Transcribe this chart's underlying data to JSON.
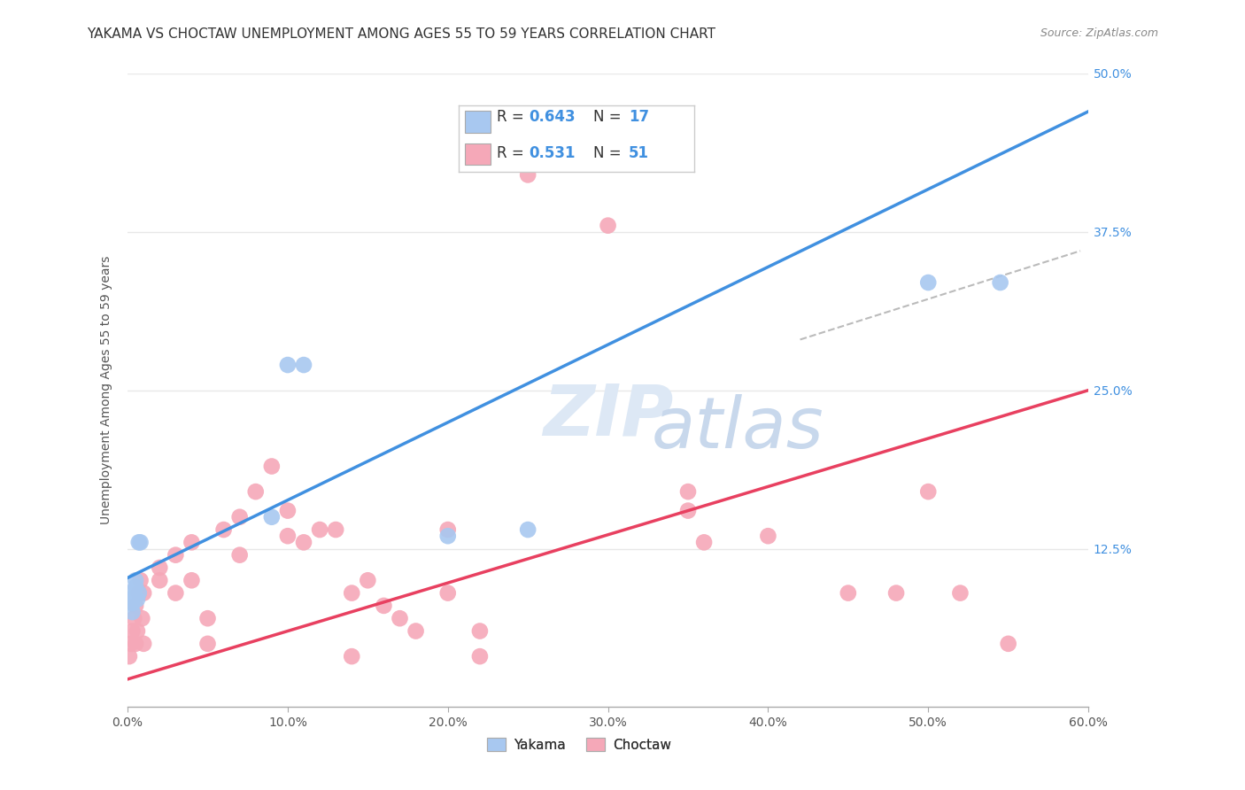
{
  "title": "YAKAMA VS CHOCTAW UNEMPLOYMENT AMONG AGES 55 TO 59 YEARS CORRELATION CHART",
  "source": "Source: ZipAtlas.com",
  "ylabel": "Unemployment Among Ages 55 to 59 years",
  "xlim": [
    0.0,
    0.6
  ],
  "ylim": [
    0.0,
    0.5
  ],
  "xticks": [
    0.0,
    0.1,
    0.2,
    0.3,
    0.4,
    0.5,
    0.6
  ],
  "yticks": [
    0.0,
    0.125,
    0.25,
    0.375,
    0.5
  ],
  "xtick_labels": [
    "0.0%",
    "10.0%",
    "20.0%",
    "30.0%",
    "40.0%",
    "50.0%",
    "60.0%"
  ],
  "ytick_labels": [
    "",
    "12.5%",
    "25.0%",
    "37.5%",
    "50.0%"
  ],
  "yakama_color": "#A8C8F0",
  "choctaw_color": "#F5A8B8",
  "yakama_line_color": "#4090E0",
  "choctaw_line_color": "#E84060",
  "dashed_line_color": "#BBBBBB",
  "watermark_color": "#DDE8F5",
  "yakama_points": [
    [
      0.001,
      0.085
    ],
    [
      0.002,
      0.09
    ],
    [
      0.003,
      0.075
    ],
    [
      0.003,
      0.082
    ],
    [
      0.005,
      0.095
    ],
    [
      0.005,
      0.1
    ],
    [
      0.006,
      0.085
    ],
    [
      0.007,
      0.09
    ],
    [
      0.007,
      0.13
    ],
    [
      0.008,
      0.13
    ],
    [
      0.09,
      0.15
    ],
    [
      0.1,
      0.27
    ],
    [
      0.11,
      0.27
    ],
    [
      0.2,
      0.135
    ],
    [
      0.25,
      0.14
    ],
    [
      0.5,
      0.335
    ],
    [
      0.545,
      0.335
    ]
  ],
  "choctaw_points": [
    [
      0.001,
      0.04
    ],
    [
      0.002,
      0.05
    ],
    [
      0.003,
      0.06
    ],
    [
      0.004,
      0.07
    ],
    [
      0.005,
      0.05
    ],
    [
      0.005,
      0.08
    ],
    [
      0.006,
      0.06
    ],
    [
      0.007,
      0.09
    ],
    [
      0.008,
      0.1
    ],
    [
      0.009,
      0.07
    ],
    [
      0.01,
      0.09
    ],
    [
      0.01,
      0.05
    ],
    [
      0.02,
      0.11
    ],
    [
      0.02,
      0.1
    ],
    [
      0.03,
      0.12
    ],
    [
      0.03,
      0.09
    ],
    [
      0.04,
      0.13
    ],
    [
      0.04,
      0.1
    ],
    [
      0.05,
      0.07
    ],
    [
      0.05,
      0.05
    ],
    [
      0.06,
      0.14
    ],
    [
      0.07,
      0.15
    ],
    [
      0.07,
      0.12
    ],
    [
      0.08,
      0.17
    ],
    [
      0.09,
      0.19
    ],
    [
      0.1,
      0.155
    ],
    [
      0.1,
      0.135
    ],
    [
      0.11,
      0.13
    ],
    [
      0.12,
      0.14
    ],
    [
      0.13,
      0.14
    ],
    [
      0.14,
      0.09
    ],
    [
      0.14,
      0.04
    ],
    [
      0.15,
      0.1
    ],
    [
      0.16,
      0.08
    ],
    [
      0.17,
      0.07
    ],
    [
      0.18,
      0.06
    ],
    [
      0.2,
      0.14
    ],
    [
      0.2,
      0.09
    ],
    [
      0.22,
      0.06
    ],
    [
      0.22,
      0.04
    ],
    [
      0.25,
      0.42
    ],
    [
      0.3,
      0.38
    ],
    [
      0.35,
      0.17
    ],
    [
      0.35,
      0.155
    ],
    [
      0.36,
      0.13
    ],
    [
      0.4,
      0.135
    ],
    [
      0.45,
      0.09
    ],
    [
      0.48,
      0.09
    ],
    [
      0.5,
      0.17
    ],
    [
      0.52,
      0.09
    ],
    [
      0.55,
      0.05
    ]
  ],
  "yakama_line_x": [
    0.0,
    0.6
  ],
  "yakama_line_y": [
    0.102,
    0.47
  ],
  "choctaw_line_x": [
    0.0,
    0.6
  ],
  "choctaw_line_y": [
    0.022,
    0.25
  ],
  "dashed_line_x": [
    0.42,
    0.595
  ],
  "dashed_line_y": [
    0.29,
    0.36
  ],
  "background_color": "#FFFFFF",
  "grid_color": "#E8E8E8",
  "title_fontsize": 11,
  "axis_label_fontsize": 10,
  "tick_fontsize": 10,
  "legend_fontsize": 13,
  "source_fontsize": 9,
  "r_yakama": "0.643",
  "n_yakama": "17",
  "r_choctaw": "0.531",
  "n_choctaw": "51"
}
